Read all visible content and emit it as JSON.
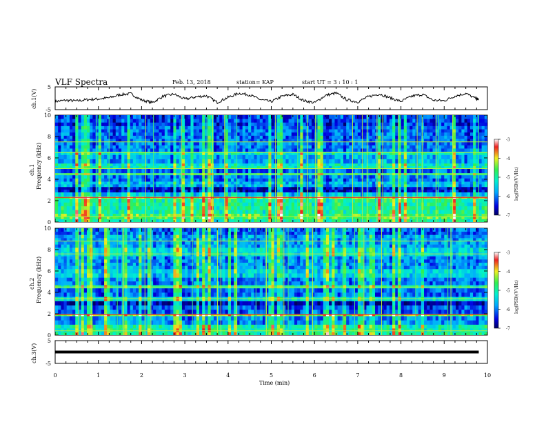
{
  "header": {
    "title": "VLF Spectra",
    "date": "Feb. 13, 2018",
    "station": "station= KAP",
    "start": "start  UT =  3 : 10 : 1"
  },
  "panels": {
    "ch1_label": "ch.1(V)",
    "ch3_label": "ch.3(V)",
    "spec1_label": "ch.1",
    "spec2_label": "ch.2",
    "freq_label": "Frequency (kHz)",
    "x_label": "Time (min)",
    "colorbar_label": "log(PSD)(V²/Hz)"
  },
  "colors": {
    "deep_blue": "#1e2ad8",
    "blue": "#2f63e6",
    "cyan": "#21d3f0",
    "green": "#3ef07a",
    "yellow_green": "#b6ee3a",
    "red": "#e0342c",
    "black": "#000000"
  },
  "chart_data": [
    {
      "type": "line",
      "id": "ch1_waveform",
      "ylabel": "ch.1(V)",
      "ylim": [
        -5,
        5
      ],
      "yticks": [
        -5,
        5
      ],
      "xlim": [
        0,
        10
      ],
      "x": [
        0,
        0.25,
        0.5,
        0.75,
        1,
        1.25,
        1.5,
        1.75,
        2,
        2.25,
        2.5,
        2.75,
        3,
        3.25,
        3.5,
        3.75,
        4,
        4.25,
        4.5,
        4.75,
        5,
        5.25,
        5.5,
        5.75,
        6,
        6.25,
        6.5,
        6.75,
        7,
        7.25,
        7.5,
        7.75,
        8,
        8.25,
        8.5,
        8.75,
        9,
        9.25,
        9.5,
        9.75,
        9.8
      ],
      "y": [
        -1.4,
        -0.9,
        -1.2,
        -0.6,
        -0.3,
        0.2,
        1.6,
        2.0,
        -0.8,
        -1.9,
        0.9,
        1.8,
        -0.4,
        0.6,
        1.1,
        -1.8,
        0.4,
        2.2,
        1.5,
        -0.6,
        -1.5,
        0.9,
        1.7,
        -1.0,
        -2.0,
        1.2,
        2.3,
        -0.7,
        -1.6,
        0.7,
        1.9,
        0.2,
        -1.4,
        0.9,
        1.7,
        -0.9,
        -1.1,
        1.0,
        2.1,
        -0.3,
        -0.5
      ]
    },
    {
      "type": "heatmap",
      "id": "ch1_spectrogram",
      "ylabel": "Frequency (kHz)",
      "ylim": [
        0,
        10
      ],
      "yticks": [
        0,
        2,
        4,
        6,
        8,
        10
      ],
      "xlim": [
        0,
        10
      ],
      "colorbar": {
        "label": "log(PSD)(V²/Hz)",
        "range": [
          -7,
          -3
        ],
        "ticks": [
          -3,
          -4,
          -5,
          -6,
          -7
        ]
      },
      "band_levels_khz": [
        [
          0.0,
          0.3,
          -5.0
        ],
        [
          0.3,
          0.8,
          -4.6
        ],
        [
          0.8,
          2.2,
          -5.0
        ],
        [
          2.2,
          2.4,
          -4.3
        ],
        [
          2.4,
          2.8,
          -5.6
        ],
        [
          2.8,
          3.3,
          -6.6
        ],
        [
          3.3,
          3.8,
          -5.7
        ],
        [
          3.8,
          4.4,
          -6.0
        ],
        [
          4.4,
          4.6,
          -5.0
        ],
        [
          4.6,
          5.0,
          -6.1
        ],
        [
          5.0,
          5.5,
          -5.2
        ],
        [
          5.5,
          6.3,
          -5.8
        ],
        [
          6.3,
          6.6,
          -5.2
        ],
        [
          6.6,
          7.5,
          -6.0
        ],
        [
          7.5,
          9.0,
          -6.1
        ],
        [
          9.0,
          10.0,
          -6.3
        ]
      ]
    },
    {
      "type": "heatmap",
      "id": "ch2_spectrogram",
      "ylabel": "Frequency (kHz)",
      "ylim": [
        0,
        10
      ],
      "yticks": [
        0,
        2,
        4,
        6,
        8,
        10
      ],
      "xlim": [
        0,
        10
      ],
      "colorbar": {
        "label": "log(PSD)(V²/Hz)",
        "range": [
          -7,
          -3
        ],
        "ticks": [
          -3,
          -4,
          -5,
          -6,
          -7
        ]
      },
      "band_levels_khz": [
        [
          0.0,
          0.3,
          -5.0
        ],
        [
          0.3,
          1.0,
          -5.1
        ],
        [
          1.0,
          1.8,
          -5.9
        ],
        [
          1.8,
          2.0,
          -4.3
        ],
        [
          2.0,
          2.8,
          -6.2
        ],
        [
          2.8,
          3.2,
          -6.7
        ],
        [
          3.2,
          3.6,
          -5.3
        ],
        [
          3.6,
          4.4,
          -6.1
        ],
        [
          4.4,
          4.7,
          -5.0
        ],
        [
          4.7,
          5.4,
          -6.0
        ],
        [
          5.4,
          6.2,
          -5.5
        ],
        [
          6.2,
          7.4,
          -5.9
        ],
        [
          7.4,
          8.2,
          -5.4
        ],
        [
          8.2,
          9.4,
          -5.8
        ],
        [
          9.4,
          10.0,
          -6.1
        ]
      ]
    },
    {
      "type": "line",
      "id": "ch3_waveform",
      "ylabel": "ch.3(V)",
      "ylim": [
        -5,
        5
      ],
      "yticks": [
        -5,
        5
      ],
      "xlim": [
        0,
        10
      ],
      "x": [
        0,
        9.8
      ],
      "y": [
        0,
        0
      ],
      "xlabel": "Time (min)",
      "xticks": [
        0,
        1,
        2,
        3,
        4,
        5,
        6,
        7,
        8,
        9,
        10
      ]
    }
  ]
}
